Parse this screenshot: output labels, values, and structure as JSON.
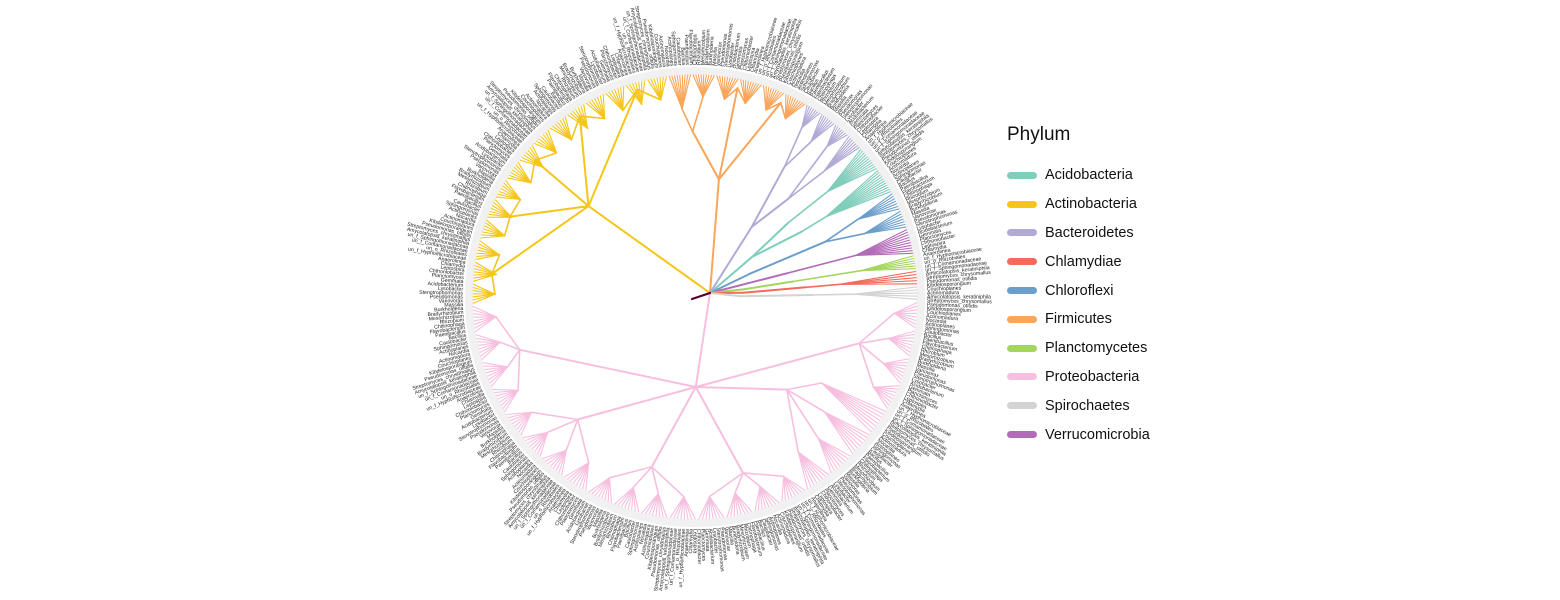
{
  "legend": {
    "title": "Phylum",
    "items": [
      {
        "label": "Acidobacteria",
        "color": "#7fcdbb"
      },
      {
        "label": "Actinobacteria",
        "color": "#f5c518"
      },
      {
        "label": "Bacteroidetes",
        "color": "#b1aad6"
      },
      {
        "label": "Chlamydiae",
        "color": "#f26b5b"
      },
      {
        "label": "Chloroflexi",
        "color": "#6b9ecb"
      },
      {
        "label": "Firmicutes",
        "color": "#f9a55a"
      },
      {
        "label": "Planctomycetes",
        "color": "#a4d65e"
      },
      {
        "label": "Proteobacteria",
        "color": "#f7bfdf"
      },
      {
        "label": "Spirochaetes",
        "color": "#d3d3d3"
      },
      {
        "label": "Verrucomicrobia",
        "color": "#b26cb7"
      }
    ]
  },
  "tip_labels": {
    "visible_examples": [
      "Amycolatopsis_keratiniphila",
      "Streptomyces_chrysomallus",
      "Pseudomonas_otitidis",
      "Kibdelosporangium",
      "Couchioplanes",
      "Actinomadura",
      "Nocardia",
      "Actinoplanes",
      "Sphingomonas",
      "Caulobacter",
      "Bacillus",
      "Paenibacillus",
      "Flavobacterium",
      "Chitinophaga",
      "Rhizobium",
      "Mesorhizobium",
      "Bradyrhizobium",
      "Burkholderia",
      "Massilia",
      "Variovorax",
      "Pseudomonas",
      "Stenotrophomonas",
      "Lysobacter",
      "Acidobacterium",
      "Gemmata",
      "Planctomyces",
      "Chthoniobacter",
      "Leptospira",
      "Chlamydia",
      "Anaerolinea",
      "un_f_Hyphomicrobiaceae",
      "un_o_Rhizobiales",
      "un_f_Comamonadaceae",
      "un_f_Sphingomonadaceae"
    ]
  }
}
